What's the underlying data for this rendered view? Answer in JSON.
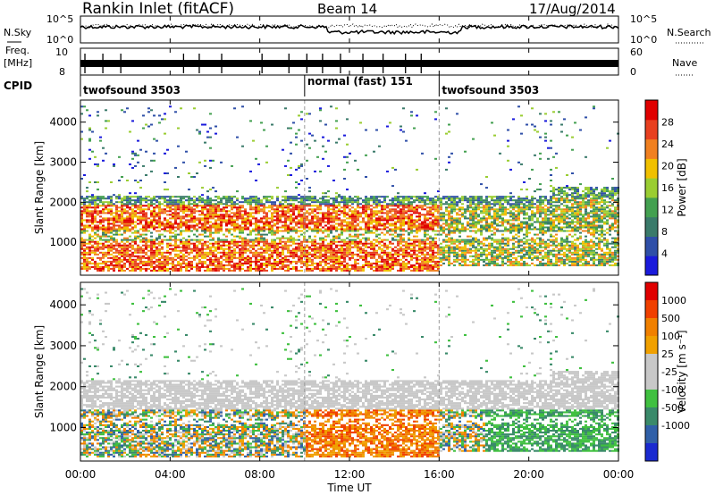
{
  "header": {
    "station": "Rankin Inlet (fitACF)",
    "beam": "Beam 14",
    "date": "17/Aug/2014"
  },
  "top_panels": {
    "nsky_label": "N.Sky",
    "nsearch_label": "N.Search",
    "freq_label_1": "Freq.",
    "freq_label_2": "[MHz]",
    "nave_label": "Nave",
    "cpid_label": "CPID",
    "nsky_ticks": [
      "10^5",
      "10^0"
    ],
    "nsearch_ticks": [
      "10^5",
      "10^0"
    ],
    "freq_ticks": [
      "10",
      "8"
    ],
    "nave_ticks": [
      "60",
      "0"
    ]
  },
  "cpid_segments": [
    {
      "start_h": 0,
      "end_h": 10,
      "label": "twofsound 3503"
    },
    {
      "start_h": 10,
      "end_h": 16,
      "label": "normal (fast) 151"
    },
    {
      "start_h": 16,
      "end_h": 24,
      "label": "twofsound 3503"
    }
  ],
  "colors": {
    "power_scale": [
      "#1a1adc",
      "#2f4fa8",
      "#3a7a6a",
      "#43a050",
      "#9acd32",
      "#f0c000",
      "#f08020",
      "#e84020",
      "#e00000"
    ],
    "velocity_scale": [
      "#e00000",
      "#f04000",
      "#f08000",
      "#f0a000",
      "#c8c8c8",
      "#c8c8c8",
      "#40c040",
      "#3a8a6a",
      "#3060a8",
      "#1a2ad0"
    ]
  },
  "chart_data": [
    {
      "type": "heatmap",
      "title": "",
      "xlabel": "Time UT",
      "ylabel": "Slant Range [km]",
      "x_ticks": [
        "00:00",
        "04:00",
        "08:00",
        "12:00",
        "16:00",
        "20:00",
        "00:00"
      ],
      "xlim_hours": [
        0,
        24
      ],
      "ylim": [
        180,
        4550
      ],
      "y_ticks": [
        1000,
        2000,
        3000,
        4000
      ],
      "colorbar_label": "Power [dB]",
      "colorbar_ticks": [
        "4",
        "8",
        "12",
        "16",
        "20",
        "24",
        "28"
      ],
      "colorbar_range": [
        0,
        30
      ],
      "echo_bands_km": [
        {
          "from_h": 0.0,
          "to_h": 16.0,
          "lower": 300,
          "upper": 2100,
          "level": "high"
        },
        {
          "from_h": 16.0,
          "to_h": 24.0,
          "lower": 400,
          "upper": 2300,
          "level": "medium"
        }
      ]
    },
    {
      "type": "heatmap",
      "title": "",
      "xlabel": "Time UT",
      "ylabel": "Slant Range [km]",
      "x_ticks": [
        "00:00",
        "04:00",
        "08:00",
        "12:00",
        "16:00",
        "20:00",
        "00:00"
      ],
      "xlim_hours": [
        0,
        24
      ],
      "ylim": [
        180,
        4550
      ],
      "y_ticks": [
        1000,
        2000,
        3000,
        4000
      ],
      "colorbar_label": "Velocity [m s⁻¹]",
      "colorbar_ticks": [
        "1000",
        "500",
        "100",
        "25",
        "-25",
        "-100",
        "-500",
        "-1000"
      ],
      "colorbar_range": [
        -1000,
        1000
      ]
    }
  ]
}
